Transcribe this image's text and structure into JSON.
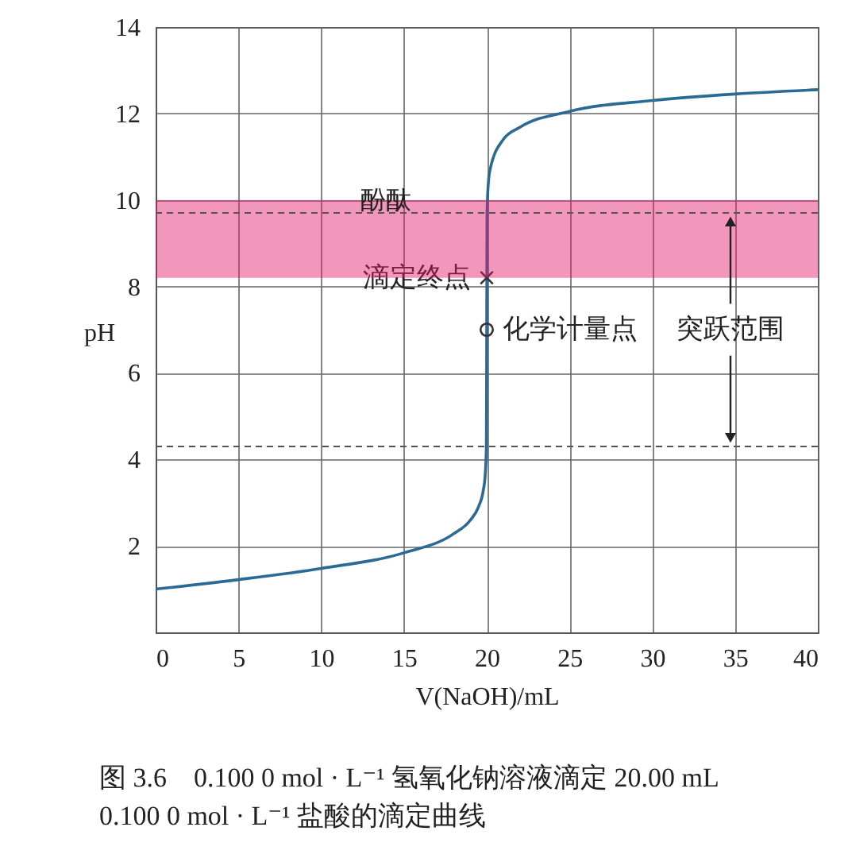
{
  "chart_data": {
    "type": "line",
    "title": "图 3.6　0.100 0 mol · L⁻¹ 氢氧化钠溶液滴定 20.00 mL\n0.100 0 mol · L⁻¹ 盐酸的滴定曲线",
    "xlabel": "V(NaOH)/mL",
    "ylabel": "pH",
    "series": [
      {
        "color": "#2b6a94",
        "x": [
          0,
          5,
          10,
          15,
          18,
          19,
          19.5,
          19.8,
          19.9,
          19.98,
          20,
          20.02,
          20.1,
          20.2,
          21,
          22,
          25,
          30,
          35,
          40
        ],
        "values": [
          1.0,
          1.22,
          1.48,
          1.84,
          2.28,
          2.59,
          2.9,
          3.3,
          3.6,
          4.3,
          7.0,
          9.7,
          10.4,
          10.7,
          11.4,
          11.68,
          12.05,
          12.3,
          12.45,
          12.55
        ]
      },
      {
        "type": "scatter",
        "name": "滴定终点",
        "color": "#333333",
        "marker": "cross",
        "x": [
          20
        ],
        "values": [
          8.2
        ]
      },
      {
        "type": "scatter",
        "name": "化学计量点",
        "color": "#333333",
        "marker": "circle",
        "x": [
          20
        ],
        "values": [
          7
        ]
      }
    ],
    "annotations": [
      "突跃范围"
    ],
    "bands": [
      {
        "axis": "y",
        "from": 8.2,
        "to": 10,
        "label": "酚酞",
        "color": "#e5176a"
      }
    ],
    "ref_lines": [
      {
        "axis": "y",
        "value": 9.7,
        "line_style": "dashed"
      },
      {
        "axis": "y",
        "value": 4.3,
        "line_style": "dashed"
      }
    ],
    "xlim": [
      0,
      40
    ],
    "xticks": [
      0,
      5,
      10,
      15,
      20,
      25,
      30,
      35,
      40
    ],
    "ylim": [
      0,
      14
    ],
    "yticks": [
      {
        "value": 0,
        "label": null
      },
      2,
      4,
      6,
      8,
      10,
      12,
      14
    ],
    "grid": true
  }
}
